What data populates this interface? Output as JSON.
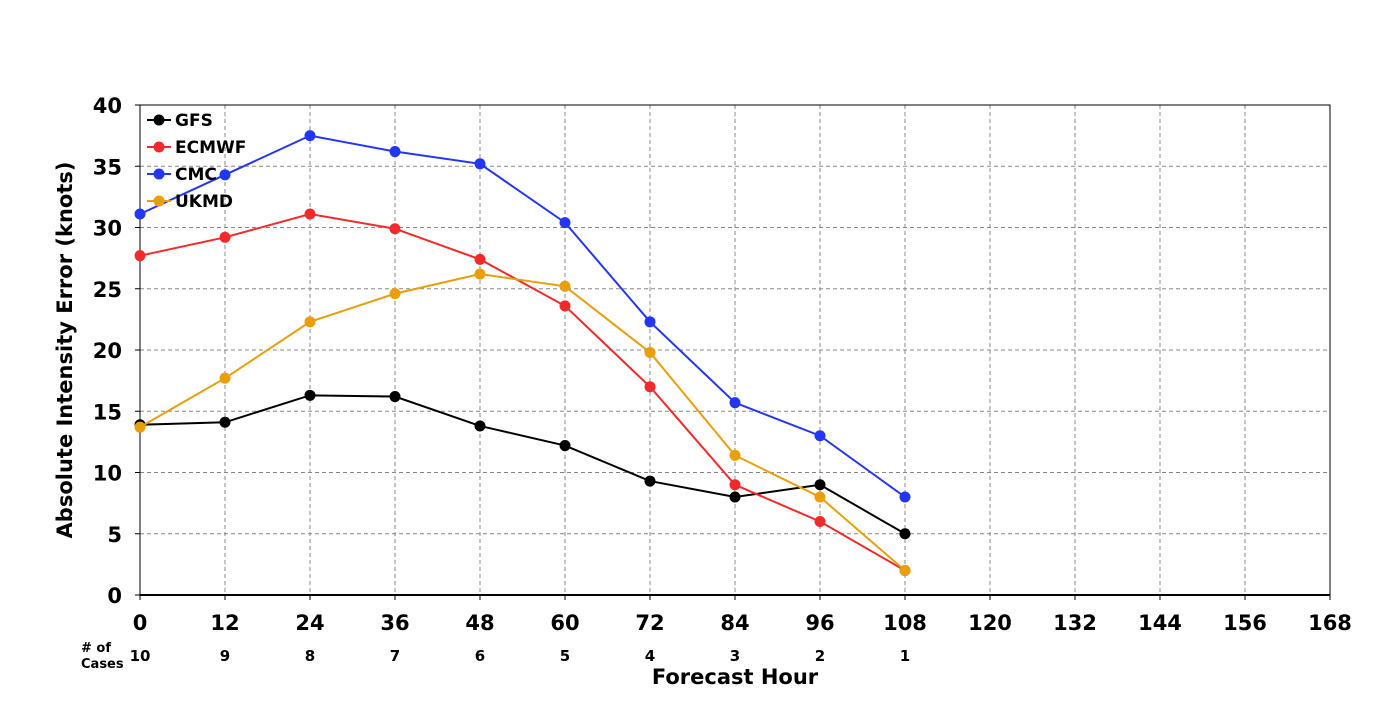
{
  "chart_data": {
    "type": "line",
    "xlabel": "Forecast Hour",
    "ylabel": "Absolute Intensity Error (knots)",
    "xlim": [
      0,
      168
    ],
    "ylim": [
      0,
      40
    ],
    "x_ticks": [
      0,
      12,
      24,
      36,
      48,
      60,
      72,
      84,
      96,
      108,
      120,
      132,
      144,
      156,
      168
    ],
    "y_ticks": [
      0,
      5,
      10,
      15,
      20,
      25,
      30,
      35,
      40
    ],
    "grid": true,
    "legend_position": "top-left",
    "x": [
      0,
      12,
      24,
      36,
      48,
      60,
      72,
      84,
      96,
      108
    ],
    "series": [
      {
        "name": "GFS",
        "color": "#000000",
        "values": [
          13.9,
          14.1,
          16.3,
          16.2,
          13.8,
          12.2,
          9.3,
          8.0,
          9.0,
          5.0
        ]
      },
      {
        "name": "ECMWF",
        "color": "#f42a2a",
        "values": [
          27.7,
          29.2,
          31.1,
          29.9,
          27.4,
          23.6,
          17.0,
          9.0,
          6.0,
          2.0
        ]
      },
      {
        "name": "CMC",
        "color": "#2236f4",
        "values": [
          31.1,
          34.3,
          37.5,
          36.2,
          35.2,
          30.4,
          22.3,
          15.7,
          13.0,
          8.0
        ]
      },
      {
        "name": "UKMD",
        "color": "#e89f0a",
        "values": [
          13.7,
          17.7,
          22.3,
          24.6,
          26.2,
          25.2,
          19.8,
          11.4,
          8.0,
          2.0
        ]
      }
    ],
    "cases": {
      "title_line1": "# of",
      "title_line2": "Cases",
      "values": [
        "10",
        "9",
        "8",
        "7",
        "6",
        "5",
        "4",
        "3",
        "2",
        "1"
      ]
    }
  }
}
